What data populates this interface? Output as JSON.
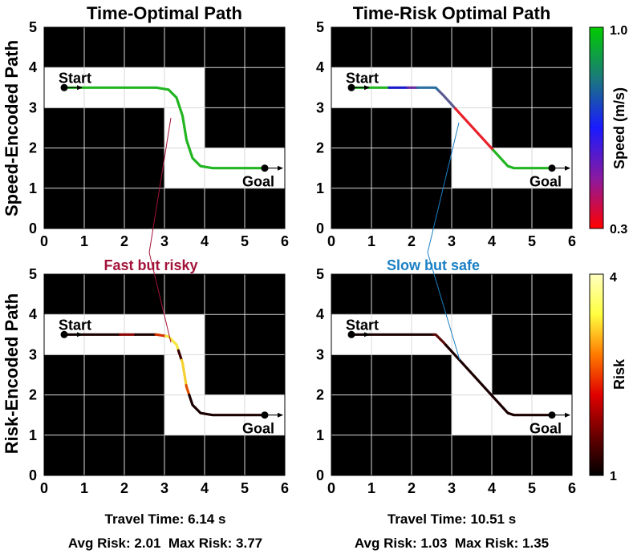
{
  "column_titles": [
    "Time-Optimal Path",
    "Time-Risk Optimal Path"
  ],
  "row_titles": [
    "Speed-Encoded Path",
    "Risk-Encoded Path"
  ],
  "annotations": {
    "left": {
      "text": "Fast but risky",
      "color": "#a3143a"
    },
    "right": {
      "text": "Slow but safe",
      "color": "#1a7fc4"
    }
  },
  "stats": {
    "left": {
      "time": "Travel Time: 6.14 s",
      "risk": "Avg Risk: 2.01  Max Risk: 3.77"
    },
    "right": {
      "time": "Travel Time: 10.51 s",
      "risk": "Avg Risk: 1.03  Max Risk: 1.35"
    }
  },
  "colorbars": {
    "speed": {
      "label": "Speed (m/s)",
      "max_label": "1.0",
      "min_label": "0.3"
    },
    "risk": {
      "label": "Risk",
      "max_label": "4",
      "min_label": "1"
    }
  },
  "chart_data": {
    "type": "path-map",
    "xlim": [
      0,
      6
    ],
    "ylim": [
      0,
      5
    ],
    "xticks": [
      "0",
      "1",
      "2",
      "3",
      "4",
      "5",
      "6"
    ],
    "yticks": [
      "0",
      "1",
      "2",
      "3",
      "4",
      "5"
    ],
    "grid": true,
    "free_space": [
      {
        "x0": 0,
        "x1": 4,
        "y0": 3,
        "y1": 4
      },
      {
        "x0": 3,
        "x1": 4,
        "y0": 1,
        "y1": 4
      },
      {
        "x0": 3,
        "x1": 6,
        "y0": 1,
        "y1": 2
      }
    ],
    "start": {
      "label": "Start",
      "x": 0.5,
      "y": 3.5
    },
    "goal": {
      "label": "Goal",
      "x": 5.5,
      "y": 1.5
    },
    "paths": {
      "time_optimal": [
        [
          0.5,
          3.5
        ],
        [
          2.8,
          3.5
        ],
        [
          3.1,
          3.45
        ],
        [
          3.3,
          3.25
        ],
        [
          3.45,
          2.8
        ],
        [
          3.5,
          2.5
        ],
        [
          3.55,
          2.2
        ],
        [
          3.7,
          1.75
        ],
        [
          3.9,
          1.55
        ],
        [
          4.2,
          1.5
        ],
        [
          5.5,
          1.5
        ]
      ],
      "time_risk": [
        [
          0.5,
          3.5
        ],
        [
          2.6,
          3.5
        ],
        [
          2.8,
          3.3
        ],
        [
          4.4,
          1.55
        ],
        [
          4.55,
          1.5
        ],
        [
          5.5,
          1.5
        ]
      ]
    },
    "panels": [
      {
        "col": 0,
        "row": 0,
        "path": "time_optimal",
        "segments": [
          {
            "from": 0,
            "to": 1,
            "color": "#22b522"
          }
        ]
      },
      {
        "col": 1,
        "row": 0,
        "path": "time_risk",
        "segments": [
          {
            "from": 0,
            "to": 0.16,
            "color": "#22b522"
          },
          {
            "from": 0.16,
            "to": 0.24,
            "color": "#1a1acc"
          },
          {
            "from": 0.24,
            "to": 0.28,
            "color": "#6a2aa0"
          },
          {
            "from": 0.28,
            "to": 0.38,
            "color": "#2a6fa0"
          },
          {
            "from": 0.38,
            "to": 0.48,
            "color": "#5a5a90"
          },
          {
            "from": 0.48,
            "to": 0.72,
            "color": "#e8202a"
          },
          {
            "from": 0.72,
            "to": 1,
            "color": "#22b522"
          }
        ]
      },
      {
        "col": 0,
        "row": 1,
        "path": "time_optimal",
        "segments": [
          {
            "from": 0,
            "to": 0.22,
            "color": "#1a0000"
          },
          {
            "from": 0.22,
            "to": 0.28,
            "color": "#8a0000"
          },
          {
            "from": 0.28,
            "to": 0.36,
            "color": "#1a0000"
          },
          {
            "from": 0.36,
            "to": 0.4,
            "color": "#d43000"
          },
          {
            "from": 0.4,
            "to": 0.48,
            "color": "#f5e640"
          },
          {
            "from": 0.48,
            "to": 0.52,
            "color": "#3a0000"
          },
          {
            "from": 0.52,
            "to": 0.62,
            "color": "#f5d030"
          },
          {
            "from": 0.62,
            "to": 0.66,
            "color": "#e05000"
          },
          {
            "from": 0.66,
            "to": 1,
            "color": "#1a0000"
          }
        ]
      },
      {
        "col": 1,
        "row": 1,
        "path": "time_risk",
        "segments": [
          {
            "from": 0,
            "to": 0.35,
            "color": "#1a0000"
          },
          {
            "from": 0.35,
            "to": 0.42,
            "color": "#5a0a0a"
          },
          {
            "from": 0.42,
            "to": 1,
            "color": "#1a0000"
          }
        ]
      }
    ],
    "speed_scale": {
      "min": 0.3,
      "max": 1.0,
      "colors": [
        "#ff0000",
        "#8a1aa0",
        "#1a1aff",
        "#1a7a7a",
        "#00cc00"
      ]
    },
    "risk_scale": {
      "min": 1,
      "max": 4,
      "colors": [
        "#000000",
        "#6a0000",
        "#e00000",
        "#ff7a00",
        "#ffff40",
        "#ffffc0"
      ]
    }
  }
}
